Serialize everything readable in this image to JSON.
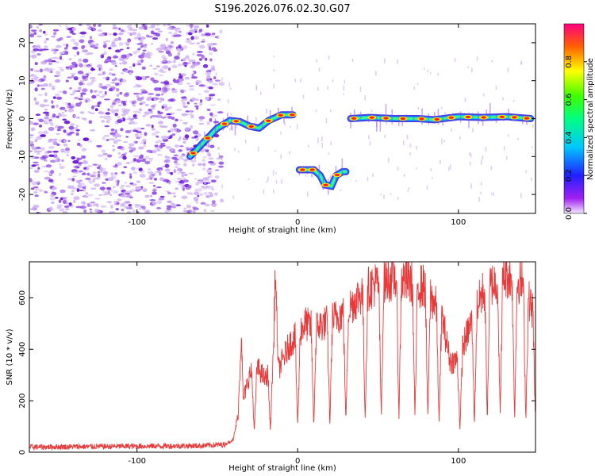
{
  "title": "S196.2026.076.02.30.G07",
  "colors": {
    "snr_line": "#e83a3a",
    "axis": "#000000",
    "noise": "#7a1fd6",
    "background": "#ffffff"
  },
  "chart_data": [
    {
      "type": "heatmap",
      "xlabel": "Height of straight line (km)",
      "ylabel": "Frequency (Hz)",
      "xlim": [
        -167,
        148
      ],
      "ylim": [
        -25,
        25
      ],
      "xticks": [
        -100,
        0,
        100
      ],
      "yticks": [
        20,
        10,
        0,
        -10,
        -20
      ],
      "noise_region": {
        "x_from": -167,
        "x_to": -52
      },
      "track_segments": [
        {
          "x": [
            -67,
            -58,
            -50,
            -42,
            -36,
            -30,
            -24,
            -18,
            -10,
            -3
          ],
          "y": [
            -10,
            -6,
            -2.5,
            -0.5,
            -0.8,
            -2,
            -2.5,
            -0.5,
            1,
            1
          ]
        },
        {
          "x": [
            1,
            6,
            10,
            14,
            17,
            21,
            24,
            28,
            30
          ],
          "y": [
            -13.5,
            -13.5,
            -13.5,
            -15,
            -17.5,
            -17.8,
            -15,
            -14,
            -14
          ]
        },
        {
          "x": [
            33,
            45,
            60,
            75,
            85,
            100,
            115,
            130,
            145
          ],
          "y": [
            0,
            0.3,
            0,
            0,
            -0.3,
            0.5,
            0.3,
            0.5,
            0
          ]
        }
      ],
      "colorbar": {
        "label": "Normalized spectral amplitude",
        "ticks": [
          "0.0",
          "0.2",
          "0.4",
          "0.6",
          "0.8"
        ],
        "tick_values": [
          0,
          0.2,
          0.4,
          0.6,
          0.8
        ],
        "range": [
          0,
          1
        ]
      }
    },
    {
      "type": "line",
      "xlabel": "Height of straight line (km)",
      "ylabel": "SNR (10 * v/v)",
      "xlim": [
        -167,
        148
      ],
      "ylim": [
        0,
        740
      ],
      "xticks": [
        -100,
        0,
        100
      ],
      "yticks": [
        0,
        200,
        400,
        600
      ],
      "series": [
        {
          "name": "SNR",
          "x": [
            -167,
            -60,
            -45,
            -40,
            -37,
            -35,
            -34,
            -30,
            -25,
            -20,
            -15,
            -14,
            -12,
            -5,
            0,
            5,
            10,
            20,
            30,
            40,
            50,
            60,
            70,
            80,
            90,
            95,
            100,
            110,
            115,
            120,
            130,
            140,
            148
          ],
          "y": [
            20,
            25,
            30,
            50,
            150,
            480,
            200,
            300,
            330,
            280,
            380,
            710,
            320,
            420,
            460,
            500,
            480,
            510,
            550,
            620,
            660,
            680,
            660,
            640,
            520,
            350,
            360,
            540,
            620,
            650,
            690,
            660,
            520
          ]
        }
      ],
      "dips_x": [
        -27,
        -17,
        0,
        10,
        20,
        30,
        42,
        52,
        63,
        73,
        81,
        88,
        101,
        110,
        118,
        126,
        135,
        142,
        148
      ]
    }
  ]
}
